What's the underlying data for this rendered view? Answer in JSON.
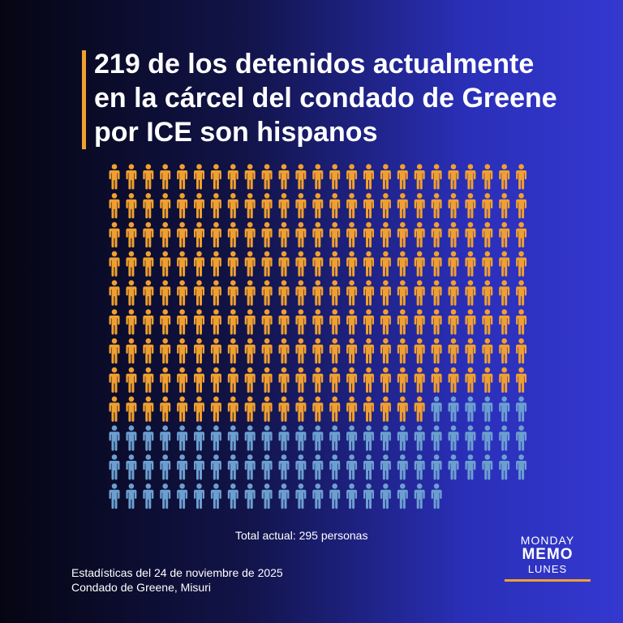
{
  "chart_data": {
    "type": "pictogram",
    "title": "219 de los detenidos actualmente\nen la cárcel del condado de Greene\npor ICE son hispanos",
    "series": [
      {
        "color": "#f0a030",
        "values": [
          219
        ]
      },
      {
        "color": "#6c9fd0",
        "values": [
          76
        ]
      }
    ],
    "note": "Total actual: 295 personas",
    "footer": [
      "Estadísticas del 24 de noviembre de 2025",
      "Condado de Greene, Misuri"
    ]
  },
  "logo": [
    "MONDAY",
    "MEMO",
    "LUNES"
  ]
}
